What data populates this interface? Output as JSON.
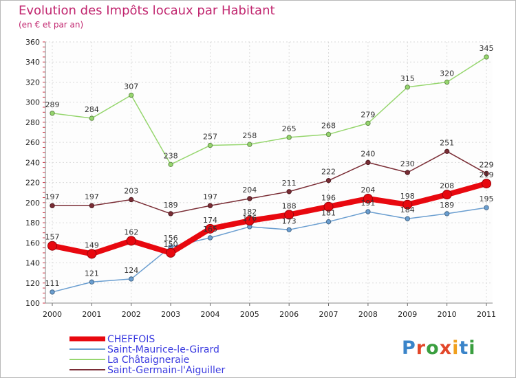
{
  "header": {
    "title": "Evolution des Impôts locaux par Habitant",
    "subtitle": "(en € et par an)"
  },
  "logo": {
    "text": "Proxiti",
    "letter_colors": [
      "#3a84c9",
      "#e2472a",
      "#3a9e3f",
      "#e2472a",
      "#f0a01e",
      "#3a84c9",
      "#3a9e3f"
    ]
  },
  "chart_data": {
    "type": "line",
    "x": [
      "2000",
      "2001",
      "2002",
      "2003",
      "2004",
      "2005",
      "2006",
      "2007",
      "2008",
      "2009",
      "2010",
      "2011"
    ],
    "ylim": [
      100,
      360
    ],
    "yticks": [
      "100",
      "120",
      "140",
      "160",
      "180",
      "200",
      "220",
      "240",
      "260",
      "280",
      "300",
      "320",
      "340",
      "360"
    ],
    "grid": true,
    "legend_position": "bottom-left",
    "series": [
      {
        "name": "Saint-Maurice-le-Girard",
        "color": "#6a9ed0",
        "values": [
          111,
          121,
          124,
          156,
          165,
          176,
          173,
          181,
          191,
          184,
          189,
          195
        ],
        "labels": [
          "111",
          "121",
          "124",
          "156",
          "165",
          "176",
          "173",
          "181",
          "191",
          "184",
          "189",
          "195"
        ]
      },
      {
        "name": "La Châtaigneraie",
        "color": "#96d66e",
        "values": [
          289,
          284,
          307,
          238,
          257,
          258,
          265,
          268,
          279,
          315,
          320,
          345
        ],
        "labels": [
          "289",
          "284",
          "307",
          "238",
          "257",
          "258",
          "265",
          "268",
          "279",
          "315",
          "320",
          "345"
        ]
      },
      {
        "name": "Saint-Germain-l'Aiguiller",
        "color": "#7a2d35",
        "values": [
          197,
          197,
          203,
          189,
          197,
          204,
          211,
          222,
          240,
          230,
          251,
          229
        ],
        "labels": [
          "197",
          "197",
          "203",
          "189",
          "197",
          "204",
          "211",
          "222",
          "240",
          "230",
          "251",
          "229"
        ]
      },
      {
        "name": "CHEFFOIS",
        "color": "#e8080f",
        "values": [
          157,
          149,
          162,
          150,
          174,
          182,
          188,
          196,
          204,
          198,
          208,
          219
        ],
        "labels": [
          "157",
          "149",
          "162",
          "150",
          "174",
          "182",
          "188",
          "196",
          "204",
          "198",
          "208",
          "219"
        ]
      }
    ]
  }
}
